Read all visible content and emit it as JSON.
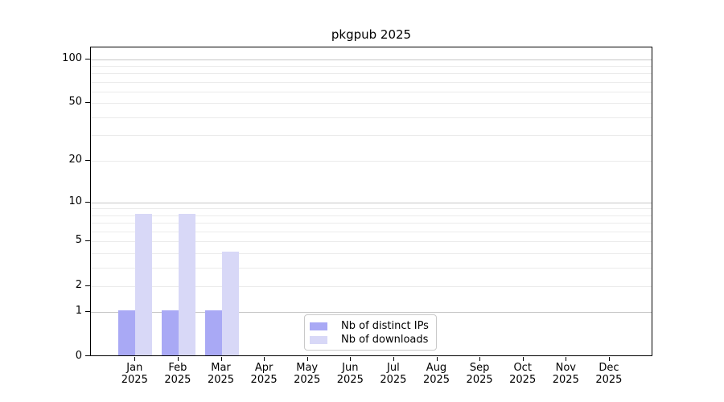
{
  "chart_data": {
    "type": "bar",
    "title": "pkgpub 2025",
    "categories": [
      "Jan",
      "Feb",
      "Mar",
      "Apr",
      "May",
      "Jun",
      "Jul",
      "Aug",
      "Sep",
      "Oct",
      "Nov",
      "Dec"
    ],
    "year_label": "2025",
    "series": [
      {
        "name": "Nb of distinct IPs",
        "color": "#a9a9f5",
        "values": [
          1,
          1,
          1,
          0,
          0,
          0,
          0,
          0,
          0,
          0,
          0,
          0
        ]
      },
      {
        "name": "Nb of downloads",
        "color": "#d8d8f7",
        "values": [
          8,
          8,
          4,
          0,
          0,
          0,
          0,
          0,
          0,
          0,
          0,
          0
        ]
      }
    ],
    "xlabel": "",
    "ylabel": "",
    "y_scale": "symlog: position proportional to log10(1+value)",
    "y_ticks": [
      0,
      1,
      2,
      5,
      10,
      20,
      50,
      100
    ],
    "y_major_gridlines": [
      1,
      10,
      100
    ],
    "y_minor_gridlines": [
      2,
      3,
      4,
      5,
      6,
      7,
      8,
      9,
      20,
      30,
      40,
      50,
      60,
      70,
      80,
      90
    ],
    "ylim": [
      0,
      120
    ],
    "grid": true,
    "legend_position": "lower center"
  },
  "colors": {
    "background": "#ffffff",
    "axis_spine": "#000000",
    "major_grid": "#c6c6c6",
    "minor_grid": "#ebebeb",
    "text": "#000000",
    "legend_border": "#c9c9c9",
    "bar_distinct_ips": "#a9a9f5",
    "bar_downloads": "#d8d8f7"
  }
}
